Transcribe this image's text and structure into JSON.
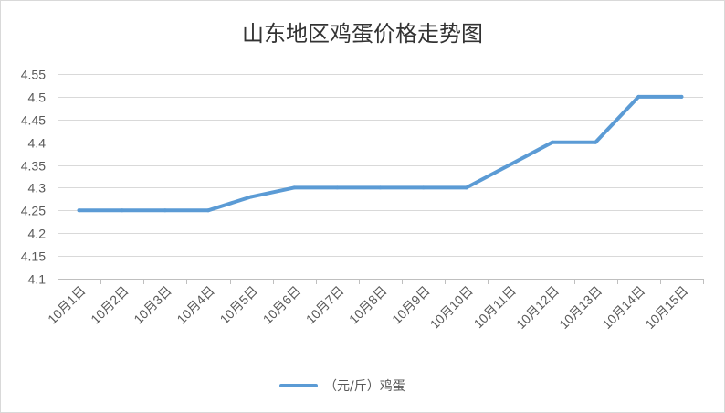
{
  "chart_data": {
    "type": "line",
    "title": "山东地区鸡蛋价格走势图",
    "xlabel": "",
    "ylabel": "",
    "categories": [
      "10月1日",
      "10月2日",
      "10月3日",
      "10月4日",
      "10月5日",
      "10月6日",
      "10月7日",
      "10月8日",
      "10月9日",
      "10月10日",
      "10月11日",
      "10月12日",
      "10月13日",
      "10月14日",
      "10月15日"
    ],
    "series": [
      {
        "name": "（元/斤）鸡蛋",
        "color": "#5b9bd5",
        "values": [
          4.25,
          4.25,
          4.25,
          4.25,
          4.28,
          4.3,
          4.3,
          4.3,
          4.3,
          4.3,
          4.35,
          4.4,
          4.4,
          4.5,
          4.5
        ]
      }
    ],
    "ylim": [
      4.1,
      4.55
    ],
    "yticks": [
      "4.1",
      "4.15",
      "4.2",
      "4.25",
      "4.3",
      "4.35",
      "4.4",
      "4.45",
      "4.5",
      "4.55"
    ],
    "grid": true,
    "legend_position": "bottom"
  }
}
